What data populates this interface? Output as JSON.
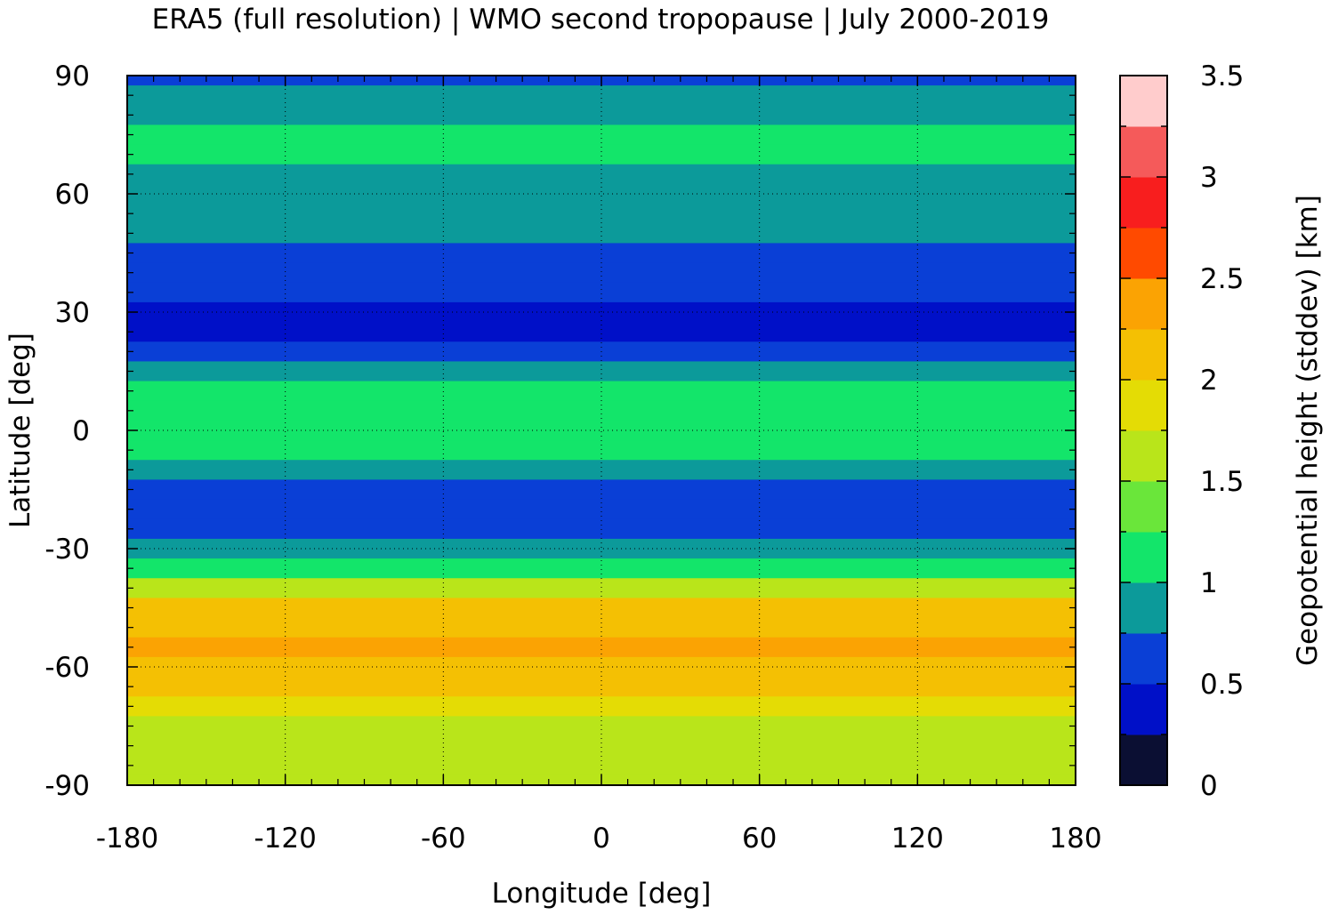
{
  "chart_data": {
    "type": "heatmap",
    "title": "ERA5 (full resolution) | WMO second tropopause | July 2000-2019",
    "xlabel": "Longitude [deg]",
    "ylabel": "Latitude [deg]",
    "colorbar_label": "Geopotential height (stddev) [km]",
    "xlim": [
      -180,
      180
    ],
    "ylim": [
      -90,
      90
    ],
    "x_ticks": [
      -180,
      -120,
      -60,
      0,
      60,
      120,
      180
    ],
    "x_tick_labels": [
      "-180",
      "-120",
      "-60",
      "0",
      "60",
      "120",
      "180"
    ],
    "y_ticks": [
      90,
      60,
      30,
      0,
      -30,
      -60,
      -90
    ],
    "y_tick_labels": [
      "90",
      "60",
      "30",
      "0",
      "-30",
      "-60",
      "-90"
    ],
    "grid": true,
    "colorbar": {
      "min": 0,
      "max": 3.5,
      "levels": [
        0,
        0.25,
        0.5,
        0.75,
        1,
        1.25,
        1.5,
        1.75,
        2,
        2.25,
        2.5,
        2.75,
        3,
        3.25,
        3.5
      ],
      "colors": [
        "#0b0f33",
        "#0010c8",
        "#0a3fd6",
        "#0c9a9a",
        "#13e56a",
        "#6ae63a",
        "#b9e51a",
        "#e4dc05",
        "#f4c003",
        "#fba303",
        "#ff4a00",
        "#f81e1e",
        "#f55a5a",
        "#ffcccc"
      ],
      "tick_values": [
        0,
        0.5,
        1,
        1.5,
        2,
        2.5,
        3,
        3.5
      ],
      "tick_labels": [
        "0",
        "0.5",
        "1",
        "1.5",
        "2",
        "2.5",
        "3",
        "3.5"
      ]
    },
    "zonal_mean_profile": {
      "latitudes": [
        90,
        85,
        80,
        75,
        70,
        65,
        60,
        55,
        50,
        45,
        40,
        35,
        30,
        25,
        20,
        15,
        10,
        5,
        0,
        -5,
        -10,
        -15,
        -20,
        -25,
        -30,
        -35,
        -40,
        -45,
        -50,
        -55,
        -60,
        -65,
        -70,
        -75,
        -80,
        -85,
        -90
      ],
      "values": [
        0.6,
        0.75,
        0.9,
        1.1,
        1.0,
        0.95,
        0.9,
        0.85,
        0.75,
        0.7,
        0.6,
        0.5,
        0.4,
        0.4,
        0.5,
        0.8,
        1.15,
        1.2,
        1.15,
        1.0,
        0.75,
        0.5,
        0.55,
        0.7,
        0.9,
        1.2,
        1.6,
        2.0,
        2.2,
        2.35,
        2.15,
        2.0,
        1.8,
        1.7,
        1.65,
        1.6,
        1.55
      ]
    }
  }
}
